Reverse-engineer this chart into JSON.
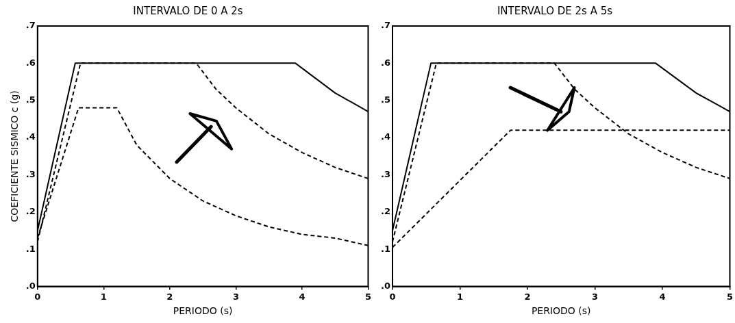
{
  "chart_data": [
    {
      "type": "line",
      "title": "INTERVALO DE 0 A 2s",
      "xlabel": "PERIODO (s)",
      "ylabel": "COEFICIENTE SISMICO c (g)",
      "xlim": [
        0,
        5
      ],
      "ylim": [
        0,
        0.7
      ],
      "xticks": [
        0,
        1,
        2,
        3,
        4,
        5
      ],
      "yticks": [
        {
          "value": 0,
          "label": ".0"
        },
        {
          "value": 0.1,
          "label": ".1"
        },
        {
          "value": 0.2,
          "label": ".2"
        },
        {
          "value": 0.3,
          "label": ".3"
        },
        {
          "value": 0.4,
          "label": ".4"
        },
        {
          "value": 0.5,
          "label": ".5"
        },
        {
          "value": 0.6,
          "label": ".6"
        },
        {
          "value": 0.7,
          "label": ".7"
        }
      ],
      "grid": false,
      "legend": false,
      "marker": "none",
      "series": [
        {
          "color": "#000000",
          "line_style": "solid",
          "x": [
            0,
            0.57,
            3.9,
            4.2,
            4.5,
            4.8,
            5
          ],
          "values": [
            0.15,
            0.6,
            0.6,
            0.56,
            0.52,
            0.49,
            0.47
          ]
        },
        {
          "color": "#000000",
          "line_style": "dashed",
          "x": [
            0,
            0.65,
            2.4,
            2.7,
            3,
            3.5,
            4,
            4.5,
            5
          ],
          "values": [
            0.12,
            0.6,
            0.6,
            0.53,
            0.48,
            0.41,
            0.36,
            0.32,
            0.29
          ]
        },
        {
          "color": "#000000",
          "line_style": "dashed",
          "x": [
            0,
            0.62,
            1.2,
            1.5,
            2,
            2.5,
            3,
            3.5,
            4,
            4.5,
            5
          ],
          "values": [
            0.13,
            0.48,
            0.48,
            0.38,
            0.29,
            0.23,
            0.19,
            0.16,
            0.14,
            0.13,
            0.11
          ]
        }
      ]
    },
    {
      "type": "line",
      "title": "INTERVALO DE 2s A 5s",
      "xlabel": "PERIODO (s)",
      "xlim": [
        0,
        5
      ],
      "ylim": [
        0,
        0.7
      ],
      "xticks": [
        0,
        1,
        2,
        3,
        4,
        5
      ],
      "yticks": [
        {
          "value": 0,
          "label": ".0"
        },
        {
          "value": 0.1,
          "label": ".1"
        },
        {
          "value": 0.2,
          "label": ".2"
        },
        {
          "value": 0.3,
          "label": ".3"
        },
        {
          "value": 0.4,
          "label": ".4"
        },
        {
          "value": 0.5,
          "label": ".5"
        },
        {
          "value": 0.6,
          "label": ".6"
        },
        {
          "value": 0.7,
          "label": ".7"
        }
      ],
      "grid": false,
      "legend": false,
      "marker": "none",
      "series": [
        {
          "color": "#000000",
          "line_style": "solid",
          "x": [
            0,
            0.57,
            3.9,
            4.2,
            4.5,
            4.8,
            5
          ],
          "values": [
            0.15,
            0.6,
            0.6,
            0.56,
            0.52,
            0.49,
            0.47
          ]
        },
        {
          "color": "#000000",
          "line_style": "dashed",
          "x": [
            0,
            0.65,
            2.4,
            2.7,
            3,
            3.5,
            4,
            4.5,
            5
          ],
          "values": [
            0.12,
            0.6,
            0.6,
            0.53,
            0.48,
            0.41,
            0.36,
            0.32,
            0.29
          ]
        },
        {
          "color": "#000000",
          "line_style": "dashed",
          "x": [
            0,
            1.75,
            5
          ],
          "values": [
            0.105,
            0.42,
            0.42
          ]
        }
      ]
    }
  ]
}
